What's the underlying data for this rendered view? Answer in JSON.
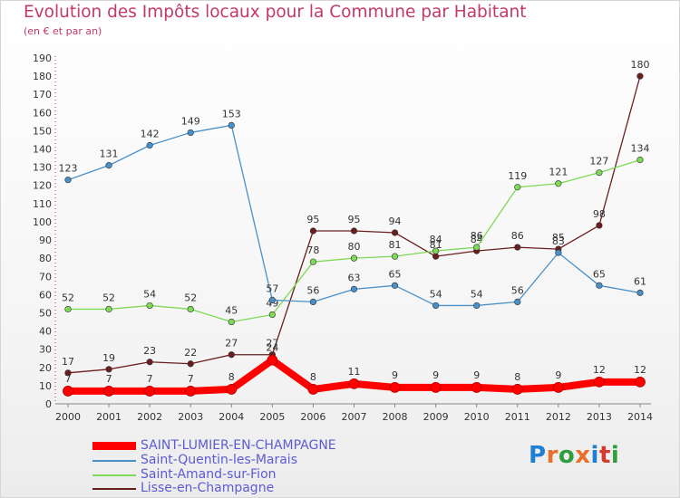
{
  "title": "Evolution des Impôts locaux pour la Commune par Habitant",
  "subtitle": "(en € et par an)",
  "logo": {
    "text": "Proxiti",
    "colors": [
      "#1e7fd3",
      "#e8702a",
      "#2f9e3f",
      "#e8702a",
      "#1e7fd3",
      "#d23a2f",
      "#2f9e3f"
    ]
  },
  "chart_data": {
    "type": "line",
    "title": "Evolution des Impôts locaux pour la Commune par Habitant",
    "subtitle": "(en € et par an)",
    "xlabel": "",
    "ylabel": "",
    "x": [
      "2000",
      "2001",
      "2002",
      "2003",
      "2004",
      "2005",
      "2006",
      "2007",
      "2008",
      "2009",
      "2010",
      "2011",
      "2012",
      "2013",
      "2014"
    ],
    "ylim": [
      0,
      190
    ],
    "yticks": [
      0,
      10,
      20,
      30,
      40,
      50,
      60,
      70,
      80,
      90,
      100,
      110,
      120,
      130,
      140,
      150,
      160,
      170,
      180,
      190
    ],
    "grid": false,
    "legend_position": "bottom-left",
    "series": [
      {
        "name": "SAINT-LUMIER-EN-CHAMPAGNE",
        "color": "#ff0000",
        "values": [
          7,
          7,
          7,
          7,
          8,
          24,
          8,
          11,
          9,
          9,
          9,
          8,
          9,
          12,
          12
        ]
      },
      {
        "name": "Saint-Quentin-les-Marais",
        "color": "#4a90c8",
        "values": [
          123,
          131,
          142,
          149,
          153,
          57,
          56,
          63,
          65,
          54,
          54,
          56,
          83,
          65,
          61
        ]
      },
      {
        "name": "Saint-Amand-sur-Fion",
        "color": "#7ed957",
        "values": [
          52,
          52,
          54,
          52,
          45,
          49,
          78,
          80,
          81,
          84,
          86,
          119,
          121,
          127,
          134
        ]
      },
      {
        "name": "Lisse-en-Champagne",
        "color": "#6b1e1e",
        "values": [
          17,
          19,
          23,
          22,
          27,
          27,
          95,
          95,
          94,
          81,
          84,
          86,
          85,
          98,
          180
        ]
      }
    ],
    "data_labels": {
      "SAINT-LUMIER-EN-CHAMPAGNE": [
        "7",
        "7",
        "7",
        "7",
        "8",
        "24",
        "8",
        "11",
        "9",
        "9",
        "9",
        "8",
        "9",
        "12",
        "12"
      ],
      "Saint-Quentin-les-Marais": [
        "123",
        "131",
        "142",
        "149",
        "153",
        "57",
        "56",
        "63",
        "65",
        "54",
        "54",
        "56",
        "83",
        "65",
        "61"
      ],
      "Saint-Amand-sur-Fion": [
        "52",
        "52",
        "54",
        "52",
        "45",
        "49",
        "78",
        "80",
        "81",
        "84",
        "86",
        "119",
        "121",
        "127",
        "134"
      ],
      "Lisse-en-Champagne": [
        "17",
        "19",
        "23",
        "22",
        "27",
        "27",
        "95",
        "95",
        "94",
        "81",
        "84",
        "86",
        "85",
        "98",
        "180"
      ]
    }
  }
}
